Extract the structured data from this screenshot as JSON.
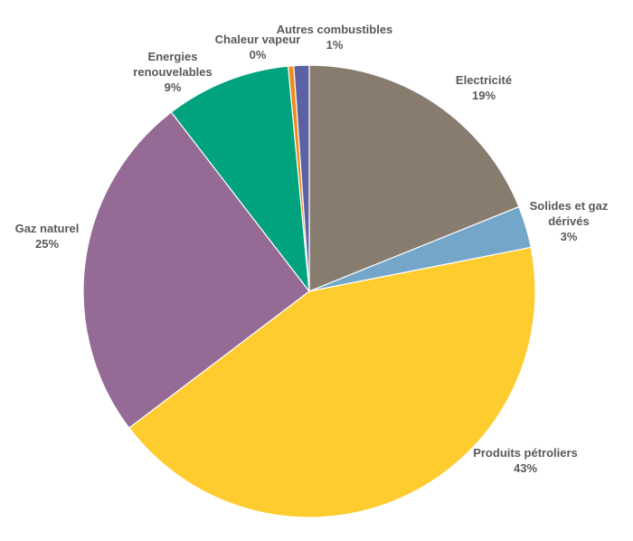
{
  "chart_data": {
    "type": "pie",
    "title": "",
    "slices": [
      {
        "label_lines": [
          "Electricité"
        ],
        "value_label": "19%",
        "value": 19,
        "color": "#877c6e"
      },
      {
        "label_lines": [
          "Solides et gaz",
          "dérivés"
        ],
        "value_label": "3%",
        "value": 3,
        "color": "#73a6c9"
      },
      {
        "label_lines": [
          "Produits pétroliers"
        ],
        "value_label": "43%",
        "value": 43,
        "color": "#fecc2f"
      },
      {
        "label_lines": [
          "Gaz naturel"
        ],
        "value_label": "25%",
        "value": 25,
        "color": "#956b96"
      },
      {
        "label_lines": [
          "Energies",
          "renouvelables"
        ],
        "value_label": "9%",
        "value": 9,
        "color": "#00a37d"
      },
      {
        "label_lines": [
          "Chaleur vapeur"
        ],
        "value_label": "0%",
        "value": 0.4,
        "color": "#f08a1c"
      },
      {
        "label_lines": [
          "Autres combustibles"
        ],
        "value_label": "1%",
        "value": 1.1,
        "color": "#5b61a3"
      }
    ],
    "legend": "none",
    "start_angle": "12 o'clock, clockwise"
  }
}
